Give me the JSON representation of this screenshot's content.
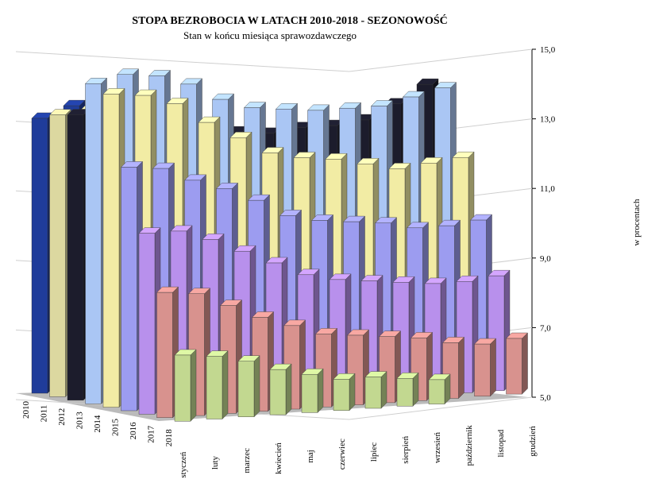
{
  "chart_data": {
    "type": "bar3d",
    "title": "STOPA BEZROBOCIA W LATACH 2010-2018 - SEZONOWOŚĆ",
    "subtitle": "Stan w końcu miesiąca sprawozdawczego",
    "y_label": "w procentach",
    "categories": [
      "styczeń",
      "luty",
      "marzec",
      "kwiecień",
      "maj",
      "czerwiec",
      "lipiec",
      "sierpień",
      "wrzesień",
      "październik",
      "listopad",
      "grudzień"
    ],
    "series": [
      {
        "name": "2010",
        "color": "#1f3c9a",
        "values": [
          12.9,
          13.2,
          12.9,
          12.3,
          11.9,
          11.6,
          11.4,
          11.4,
          11.5,
          11.5,
          11.7,
          12.4
        ]
      },
      {
        "name": "2011",
        "color": "#dcd8a0",
        "values": [
          13.1,
          13.2,
          12.9,
          12.4,
          12.0,
          11.8,
          11.7,
          11.7,
          11.8,
          11.8,
          12.1,
          12.5
        ]
      },
      {
        "name": "2012",
        "color": "#1c1c2c",
        "values": [
          13.2,
          13.4,
          13.3,
          12.9,
          12.6,
          12.4,
          12.3,
          12.4,
          12.4,
          12.5,
          12.9,
          13.4
        ]
      },
      {
        "name": "2013",
        "color": "#aac6f4",
        "values": [
          14.2,
          14.4,
          14.3,
          14.0,
          13.5,
          13.2,
          13.1,
          13.0,
          13.0,
          13.0,
          13.2,
          13.4
        ]
      },
      {
        "name": "2014",
        "color": "#f2eca4",
        "values": [
          14.0,
          13.9,
          13.6,
          13.0,
          12.5,
          12.0,
          11.8,
          11.7,
          11.5,
          11.3,
          11.4,
          11.5
        ]
      },
      {
        "name": "2015",
        "color": "#9c9cf0",
        "values": [
          12.0,
          11.9,
          11.5,
          11.2,
          10.8,
          10.3,
          10.1,
          10.0,
          9.9,
          9.7,
          9.7,
          9.8
        ]
      },
      {
        "name": "2016",
        "color": "#b890ec",
        "values": [
          10.2,
          10.2,
          9.9,
          9.5,
          9.1,
          8.7,
          8.5,
          8.4,
          8.3,
          8.2,
          8.2,
          8.3
        ]
      },
      {
        "name": "2017",
        "color": "#d8928e",
        "values": [
          8.6,
          8.5,
          8.1,
          7.7,
          7.4,
          7.1,
          7.0,
          6.9,
          6.8,
          6.6,
          6.5,
          6.6
        ]
      },
      {
        "name": "2018",
        "color": "#c2d890",
        "values": [
          6.9,
          6.8,
          6.6,
          6.3,
          6.1,
          5.9,
          5.9,
          5.8,
          5.7,
          null,
          null,
          null
        ]
      }
    ],
    "ylim": [
      5,
      15
    ],
    "yticks": [
      {
        "value": 5,
        "label": "5,0"
      },
      {
        "value": 7,
        "label": "7,0"
      },
      {
        "value": 9,
        "label": "9,0"
      },
      {
        "value": 11,
        "label": "11,0"
      },
      {
        "value": 13,
        "label": "13,0"
      },
      {
        "value": 15,
        "label": "15,0"
      }
    ],
    "grid": true
  }
}
